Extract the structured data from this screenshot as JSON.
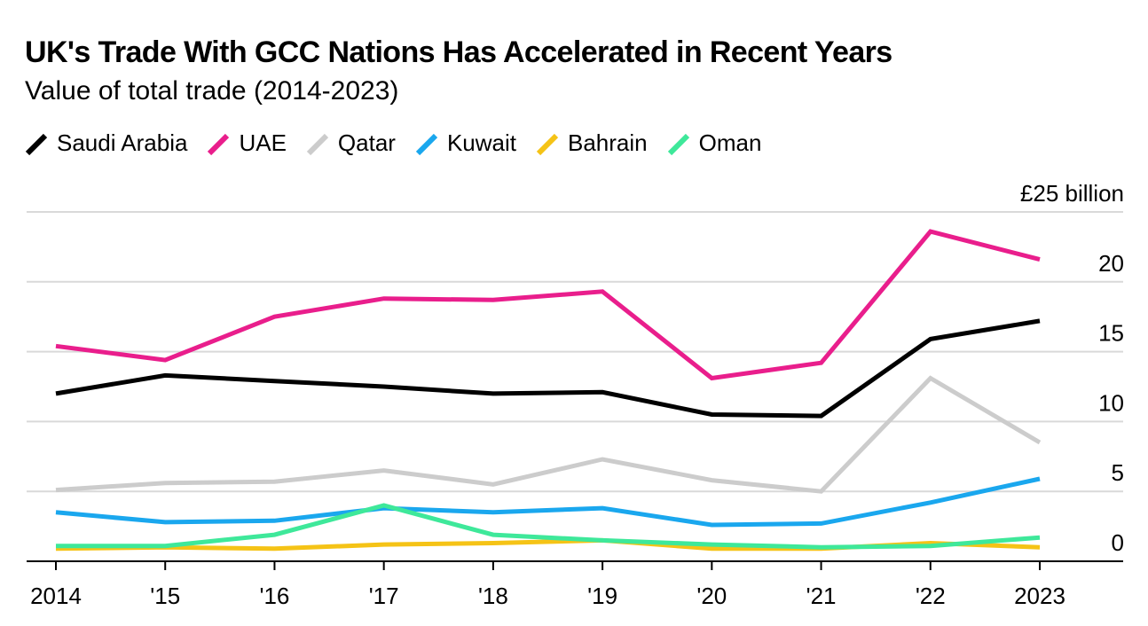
{
  "title": "UK's Trade With GCC Nations Has Accelerated in Recent Years",
  "subtitle": "Value of total trade (2014-2023)",
  "chart_data": {
    "type": "line",
    "title": "UK's Trade With GCC Nations Has Accelerated in Recent Years",
    "subtitle": "Value of total trade (2014-2023)",
    "x": [
      "2014",
      "'15",
      "'16",
      "'17",
      "'18",
      "'19",
      "'20",
      "'21",
      "'22",
      "2023"
    ],
    "ylim": [
      0,
      25
    ],
    "yticks": [
      0,
      5,
      10,
      15,
      20,
      25
    ],
    "ytick_labels": [
      "0",
      "5",
      "10",
      "15",
      "20",
      "£25 billion"
    ],
    "grid": true,
    "legend_position": "top-left",
    "series": [
      {
        "name": "Saudi Arabia",
        "color": "#000000",
        "values": [
          12.0,
          13.3,
          12.9,
          12.5,
          12.0,
          12.1,
          10.5,
          10.4,
          15.9,
          17.2
        ]
      },
      {
        "name": "UAE",
        "color": "#e91e8c",
        "values": [
          15.4,
          14.4,
          17.5,
          18.8,
          18.7,
          19.3,
          13.1,
          14.2,
          23.6,
          21.6
        ]
      },
      {
        "name": "Qatar",
        "color": "#cccccc",
        "values": [
          5.1,
          5.6,
          5.7,
          6.5,
          5.5,
          7.3,
          5.8,
          5.0,
          13.1,
          8.5
        ]
      },
      {
        "name": "Kuwait",
        "color": "#1aa7ee",
        "values": [
          3.5,
          2.8,
          2.9,
          3.8,
          3.5,
          3.8,
          2.6,
          2.7,
          4.2,
          5.9
        ]
      },
      {
        "name": "Bahrain",
        "color": "#f5c316",
        "values": [
          0.9,
          1.0,
          0.9,
          1.2,
          1.3,
          1.5,
          0.9,
          0.9,
          1.3,
          1.0
        ]
      },
      {
        "name": "Oman",
        "color": "#3ee89a",
        "values": [
          1.1,
          1.1,
          1.9,
          4.0,
          1.9,
          1.5,
          1.2,
          1.0,
          1.1,
          1.7
        ]
      }
    ]
  }
}
